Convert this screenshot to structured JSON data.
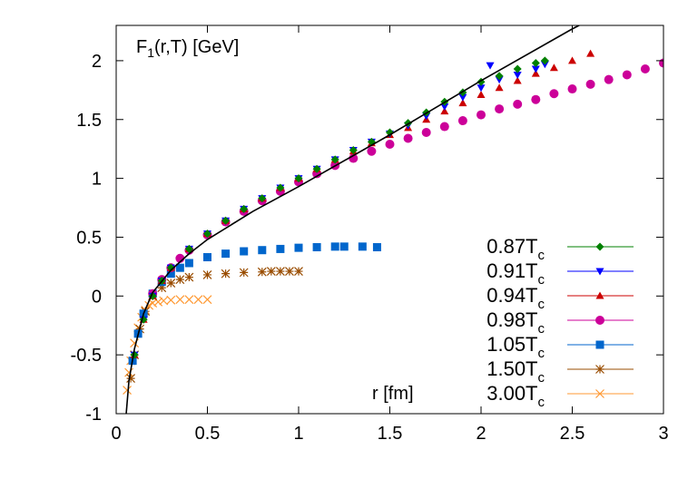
{
  "chart_data": {
    "type": "scatter",
    "title": "",
    "ylabel": "F",
    "ylabel_sub": "1",
    "ylabel_rest": "(r,T) [GeV]",
    "xlabel": "r [fm]",
    "xlim": [
      0,
      3
    ],
    "ylim": [
      -1,
      2.3
    ],
    "xticks": [
      "0",
      "0.5",
      "1",
      "1.5",
      "2",
      "2.5",
      "3"
    ],
    "xtick_values": [
      0,
      0.5,
      1,
      1.5,
      2,
      2.5,
      3
    ],
    "yticks": [
      "-1",
      "-0.5",
      "0",
      "0.5",
      "1",
      "1.5",
      "2"
    ],
    "ytick_values": [
      -1,
      -0.5,
      0,
      0.5,
      1,
      1.5,
      2
    ],
    "grid": false,
    "legend_position": "bottom-right",
    "curve": {
      "color": "#000000",
      "x": [
        0.055,
        0.07,
        0.1,
        0.15,
        0.2,
        0.3,
        0.4,
        0.5,
        0.75,
        1.0,
        1.5,
        2.0,
        2.5,
        2.6
      ],
      "y": [
        -1.0,
        -0.72,
        -0.45,
        -0.15,
        0.03,
        0.22,
        0.36,
        0.48,
        0.72,
        0.93,
        1.37,
        1.83,
        2.27,
        2.35
      ]
    },
    "series": [
      {
        "name": "0.87T",
        "sub": "c",
        "color": "#008000",
        "marker": "diamond",
        "x": [
          0.1,
          0.15,
          0.2,
          0.25,
          0.3,
          0.4,
          0.5,
          0.6,
          0.7,
          0.8,
          0.9,
          1.0,
          1.1,
          1.2,
          1.3,
          1.4,
          1.5,
          1.6,
          1.7,
          1.8,
          1.9,
          2.0,
          2.1,
          2.2,
          2.3,
          2.35
        ],
        "y": [
          -0.5,
          -0.2,
          0.0,
          0.13,
          0.24,
          0.4,
          0.53,
          0.64,
          0.74,
          0.83,
          0.92,
          1.0,
          1.08,
          1.16,
          1.24,
          1.31,
          1.39,
          1.47,
          1.56,
          1.65,
          1.73,
          1.82,
          1.87,
          1.93,
          1.98,
          2.0
        ]
      },
      {
        "name": "0.91T",
        "sub": "c",
        "color": "#0000ff",
        "marker": "triangle-down",
        "x": [
          0.1,
          0.15,
          0.2,
          0.25,
          0.3,
          0.4,
          0.5,
          0.6,
          0.7,
          0.8,
          0.9,
          1.0,
          1.1,
          1.2,
          1.3,
          1.4,
          1.5,
          1.6,
          1.7,
          1.8,
          1.9,
          2.0,
          2.05,
          2.1,
          2.2,
          2.3,
          2.35
        ],
        "y": [
          -0.5,
          -0.2,
          0.0,
          0.13,
          0.24,
          0.4,
          0.53,
          0.64,
          0.74,
          0.83,
          0.92,
          1.0,
          1.08,
          1.16,
          1.24,
          1.31,
          1.38,
          1.45,
          1.53,
          1.61,
          1.69,
          1.77,
          1.96,
          1.84,
          1.88,
          1.93,
          1.97
        ]
      },
      {
        "name": "0.94T",
        "sub": "c",
        "color": "#cc0000",
        "marker": "triangle-up",
        "x": [
          0.1,
          0.15,
          0.2,
          0.25,
          0.3,
          0.4,
          0.5,
          0.6,
          0.7,
          0.8,
          0.9,
          1.0,
          1.1,
          1.2,
          1.3,
          1.4,
          1.5,
          1.6,
          1.7,
          1.8,
          1.9,
          2.0,
          2.1,
          2.2,
          2.3,
          2.4,
          2.5,
          2.6
        ],
        "y": [
          -0.5,
          -0.2,
          0.0,
          0.13,
          0.24,
          0.4,
          0.53,
          0.64,
          0.74,
          0.83,
          0.92,
          1.0,
          1.08,
          1.16,
          1.23,
          1.3,
          1.37,
          1.43,
          1.5,
          1.57,
          1.64,
          1.71,
          1.77,
          1.83,
          1.89,
          1.94,
          2.0,
          2.06
        ]
      },
      {
        "name": "0.98T",
        "sub": "c",
        "color": "#cc0099",
        "marker": "circle",
        "x": [
          0.2,
          0.25,
          0.3,
          0.35,
          0.4,
          0.5,
          0.6,
          0.7,
          0.8,
          0.9,
          1.0,
          1.1,
          1.2,
          1.3,
          1.4,
          1.5,
          1.6,
          1.7,
          1.8,
          1.9,
          2.0,
          2.1,
          2.2,
          2.3,
          2.4,
          2.5,
          2.6,
          2.7,
          2.8,
          2.9,
          3.0
        ],
        "y": [
          0.02,
          0.14,
          0.24,
          0.32,
          0.39,
          0.52,
          0.63,
          0.72,
          0.81,
          0.89,
          0.97,
          1.04,
          1.11,
          1.17,
          1.23,
          1.29,
          1.34,
          1.39,
          1.44,
          1.49,
          1.54,
          1.59,
          1.63,
          1.67,
          1.72,
          1.76,
          1.8,
          1.84,
          1.88,
          1.93,
          1.98
        ]
      },
      {
        "name": "1.05T",
        "sub": "c",
        "color": "#0066cc",
        "marker": "square",
        "x": [
          0.09,
          0.12,
          0.15,
          0.2,
          0.25,
          0.3,
          0.35,
          0.4,
          0.5,
          0.6,
          0.7,
          0.8,
          0.9,
          1.0,
          1.1,
          1.2,
          1.25,
          1.35,
          1.43
        ],
        "y": [
          -0.55,
          -0.32,
          -0.15,
          0.02,
          0.12,
          0.19,
          0.24,
          0.28,
          0.33,
          0.36,
          0.38,
          0.39,
          0.4,
          0.41,
          0.415,
          0.42,
          0.42,
          0.42,
          0.415
        ]
      },
      {
        "name": "1.50T",
        "sub": "c",
        "color": "#994c00",
        "marker": "star",
        "x": [
          0.08,
          0.1,
          0.13,
          0.16,
          0.2,
          0.25,
          0.3,
          0.35,
          0.4,
          0.5,
          0.6,
          0.7,
          0.8,
          0.85,
          0.9,
          0.95,
          1.0
        ],
        "y": [
          -0.7,
          -0.5,
          -0.28,
          -0.13,
          0.0,
          0.07,
          0.11,
          0.14,
          0.16,
          0.18,
          0.19,
          0.2,
          0.205,
          0.21,
          0.21,
          0.21,
          0.21
        ]
      },
      {
        "name": "3.00T",
        "sub": "c",
        "color": "#ff9933",
        "marker": "cross",
        "x": [
          0.06,
          0.07,
          0.08,
          0.1,
          0.12,
          0.14,
          0.16,
          0.18,
          0.2,
          0.23,
          0.26,
          0.3,
          0.35,
          0.4,
          0.45,
          0.5
        ],
        "y": [
          -0.8,
          -0.65,
          -0.55,
          -0.4,
          -0.27,
          -0.18,
          -0.12,
          -0.08,
          -0.06,
          -0.05,
          -0.04,
          -0.035,
          -0.03,
          -0.03,
          -0.03,
          -0.03
        ]
      }
    ]
  }
}
